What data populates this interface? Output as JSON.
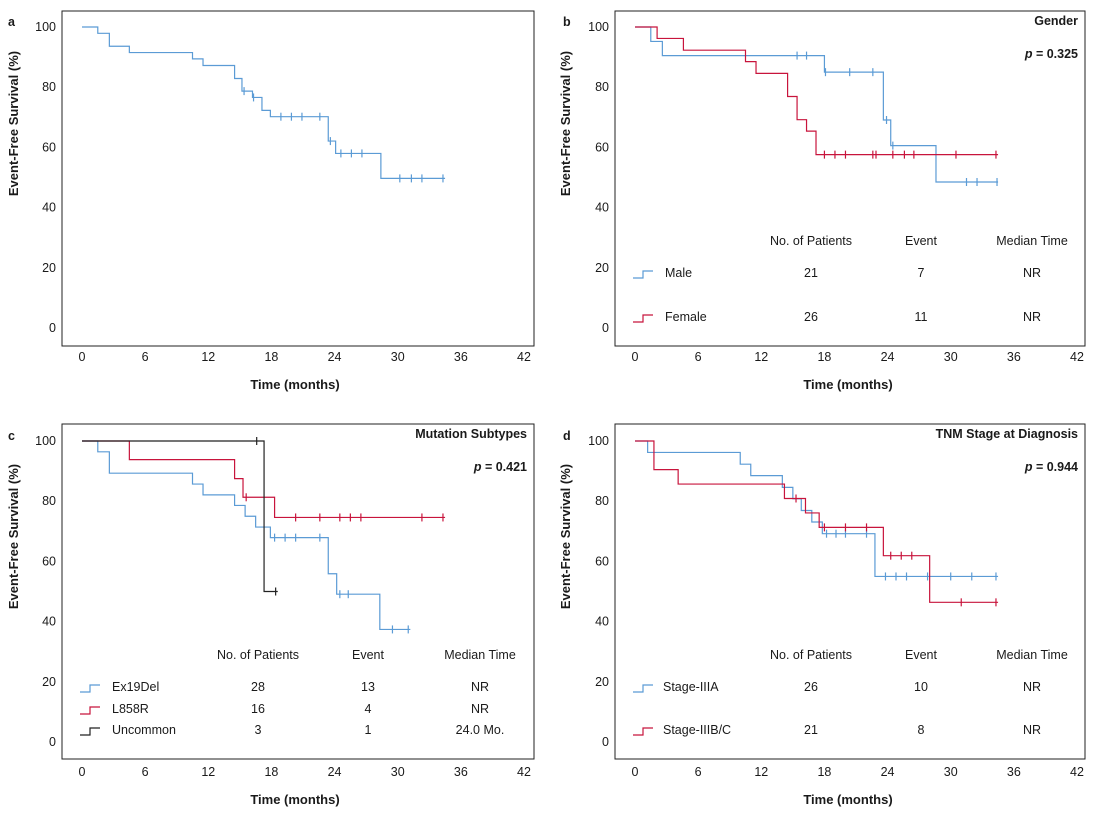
{
  "chart_data": [
    {
      "type": "line",
      "panel": "a",
      "title": "",
      "xlabel": "Time (months)",
      "ylabel": "Event-Free Survival (%)",
      "xticks": [
        0,
        6,
        12,
        18,
        24,
        30,
        36,
        42
      ],
      "yticks": [
        0,
        20,
        40,
        60,
        80,
        100
      ],
      "xlim": [
        0,
        42
      ],
      "ylim": [
        0,
        100
      ],
      "series": [
        {
          "color": "#5b9bd5",
          "steps": [
            [
              0,
              100
            ],
            [
              1.5,
              97.9
            ],
            [
              2.6,
              93.6
            ],
            [
              4.5,
              91.5
            ],
            [
              10.5,
              89.4
            ],
            [
              11.5,
              87.2
            ],
            [
              14.5,
              82.9
            ],
            [
              15.2,
              78.7
            ],
            [
              16.2,
              76.6
            ],
            [
              17.1,
              72.3
            ],
            [
              17.9,
              70.2
            ],
            [
              23.4,
              62.1
            ],
            [
              24.1,
              58.0
            ],
            [
              28.4,
              49.7
            ],
            [
              34.5,
              49.7
            ]
          ],
          "censored": [
            [
              15.4,
              78.7
            ],
            [
              16.3,
              76.6
            ],
            [
              18.9,
              70.2
            ],
            [
              19.9,
              70.2
            ],
            [
              20.9,
              70.2
            ],
            [
              22.6,
              70.2
            ],
            [
              23.6,
              62.1
            ],
            [
              24.6,
              58.0
            ],
            [
              25.6,
              58.0
            ],
            [
              26.6,
              58.0
            ],
            [
              30.2,
              49.7
            ],
            [
              31.3,
              49.7
            ],
            [
              32.3,
              49.7
            ],
            [
              34.3,
              49.7
            ]
          ]
        }
      ]
    },
    {
      "type": "line",
      "panel": "b",
      "title": "Gender",
      "p_value": "p = 0.325",
      "xlabel": "Time (months)",
      "ylabel": "Event-Free Survival (%)",
      "xticks": [
        0,
        6,
        12,
        18,
        24,
        30,
        36,
        42
      ],
      "yticks": [
        0,
        20,
        40,
        60,
        80,
        100
      ],
      "xlim": [
        0,
        42
      ],
      "ylim": [
        0,
        100
      ],
      "table_headers": [
        "No. of Patients",
        "Event",
        "Median Time"
      ],
      "series": [
        {
          "name": "Male",
          "patients": "21",
          "events": "7",
          "median": "NR",
          "color": "#5b9bd5",
          "steps": [
            [
              0,
              100
            ],
            [
              1.5,
              95.2
            ],
            [
              2.6,
              90.5
            ],
            [
              18.0,
              85.0
            ],
            [
              23.6,
              69.1
            ],
            [
              24.3,
              60.6
            ],
            [
              28.6,
              48.5
            ],
            [
              34.5,
              48.5
            ]
          ],
          "censored": [
            [
              15.4,
              90.5
            ],
            [
              16.3,
              90.5
            ],
            [
              18.1,
              85.0
            ],
            [
              20.4,
              85.0
            ],
            [
              22.6,
              85.0
            ],
            [
              23.9,
              69.1
            ],
            [
              24.5,
              60.6
            ],
            [
              31.5,
              48.5
            ],
            [
              32.5,
              48.5
            ],
            [
              34.4,
              48.5
            ]
          ]
        },
        {
          "name": "Female",
          "patients": "26",
          "events": "11",
          "median": "NR",
          "color": "#c8143c",
          "steps": [
            [
              0,
              100
            ],
            [
              2.1,
              96.2
            ],
            [
              4.6,
              92.3
            ],
            [
              10.5,
              88.5
            ],
            [
              11.5,
              84.6
            ],
            [
              14.5,
              76.9
            ],
            [
              15.4,
              69.2
            ],
            [
              16.3,
              65.4
            ],
            [
              17.2,
              57.6
            ],
            [
              34.5,
              57.6
            ]
          ],
          "censored": [
            [
              18.0,
              57.6
            ],
            [
              19.0,
              57.6
            ],
            [
              20.0,
              57.6
            ],
            [
              22.6,
              57.6
            ],
            [
              22.9,
              57.6
            ],
            [
              24.5,
              57.6
            ],
            [
              25.6,
              57.6
            ],
            [
              26.5,
              57.6
            ],
            [
              30.5,
              57.6
            ],
            [
              34.3,
              57.6
            ]
          ]
        }
      ]
    },
    {
      "type": "line",
      "panel": "c",
      "title": "Mutation Subtypes",
      "p_value": "p = 0.421",
      "xlabel": "Time (months)",
      "ylabel": "Event-Free Survival (%)",
      "xticks": [
        0,
        6,
        12,
        18,
        24,
        30,
        36,
        42
      ],
      "yticks": [
        0,
        20,
        40,
        60,
        80,
        100
      ],
      "xlim": [
        0,
        42
      ],
      "ylim": [
        0,
        100
      ],
      "table_headers": [
        "No. of Patients",
        "Event",
        "Median Time"
      ],
      "series": [
        {
          "name": "Ex19Del",
          "patients": "28",
          "events": "13",
          "median": "NR",
          "color": "#5b9bd5",
          "steps": [
            [
              0,
              100
            ],
            [
              1.5,
              96.4
            ],
            [
              2.6,
              89.3
            ],
            [
              10.5,
              85.7
            ],
            [
              11.5,
              82.1
            ],
            [
              14.5,
              78.6
            ],
            [
              15.5,
              75.0
            ],
            [
              16.5,
              71.4
            ],
            [
              17.9,
              67.9
            ],
            [
              23.4,
              55.9
            ],
            [
              24.2,
              49.1
            ],
            [
              28.3,
              37.4
            ],
            [
              31.2,
              37.4
            ]
          ],
          "censored": [
            [
              18.3,
              67.9
            ],
            [
              19.3,
              67.9
            ],
            [
              20.3,
              67.9
            ],
            [
              22.6,
              67.9
            ],
            [
              24.5,
              49.1
            ],
            [
              25.3,
              49.1
            ],
            [
              29.5,
              37.4
            ],
            [
              31.0,
              37.4
            ]
          ]
        },
        {
          "name": "L858R",
          "patients": "16",
          "events": "4",
          "median": "NR",
          "color": "#c8143c",
          "steps": [
            [
              0,
              100
            ],
            [
              4.5,
              93.8
            ],
            [
              14.5,
              87.5
            ],
            [
              15.3,
              81.3
            ],
            [
              18.3,
              74.6
            ],
            [
              34.5,
              74.6
            ]
          ],
          "censored": [
            [
              15.6,
              81.3
            ],
            [
              20.3,
              74.6
            ],
            [
              22.6,
              74.6
            ],
            [
              24.5,
              74.6
            ],
            [
              25.5,
              74.6
            ],
            [
              26.5,
              74.6
            ],
            [
              32.3,
              74.6
            ],
            [
              34.3,
              74.6
            ]
          ]
        },
        {
          "name": "Uncommon",
          "patients": "3",
          "events": "1",
          "median": "24.0 Mo.",
          "color": "#222222",
          "steps": [
            [
              0,
              100
            ],
            [
              17.3,
              100
            ],
            [
              17.3,
              50.0
            ],
            [
              18.6,
              50.0
            ]
          ],
          "censored": [
            [
              16.6,
              100
            ],
            [
              18.4,
              50.0
            ]
          ]
        }
      ]
    },
    {
      "type": "line",
      "panel": "d",
      "title": "TNM Stage at Diagnosis",
      "p_value": "p = 0.944",
      "xlabel": "Time (months)",
      "ylabel": "Event-Free Survival (%)",
      "xticks": [
        0,
        6,
        12,
        18,
        24,
        30,
        36,
        42
      ],
      "yticks": [
        0,
        20,
        40,
        60,
        80,
        100
      ],
      "xlim": [
        0,
        42
      ],
      "ylim": [
        0,
        100
      ],
      "table_headers": [
        "No. of Patients",
        "Event",
        "Median Time"
      ],
      "series": [
        {
          "name": "Stage-IIIA",
          "patients": "26",
          "events": "10",
          "median": "NR",
          "color": "#5b9bd5",
          "steps": [
            [
              0,
              100
            ],
            [
              1.2,
              96.2
            ],
            [
              10.0,
              92.3
            ],
            [
              11.0,
              88.5
            ],
            [
              14.0,
              84.6
            ],
            [
              15.0,
              80.8
            ],
            [
              15.8,
              76.9
            ],
            [
              16.8,
              73.1
            ],
            [
              17.8,
              69.2
            ],
            [
              22.8,
              55.0
            ],
            [
              34.5,
              55.0
            ]
          ],
          "censored": [
            [
              18.2,
              69.2
            ],
            [
              19.1,
              69.2
            ],
            [
              20.0,
              69.2
            ],
            [
              22.0,
              69.2
            ],
            [
              23.8,
              55.0
            ],
            [
              24.8,
              55.0
            ],
            [
              25.8,
              55.0
            ],
            [
              27.8,
              55.0
            ],
            [
              30.0,
              55.0
            ],
            [
              32.0,
              55.0
            ],
            [
              34.3,
              55.0
            ]
          ]
        },
        {
          "name": "Stage-IIIB/C",
          "patients": "21",
          "events": "8",
          "median": "NR",
          "color": "#c8143c",
          "steps": [
            [
              0,
              100
            ],
            [
              1.8,
              90.5
            ],
            [
              4.1,
              85.7
            ],
            [
              14.2,
              80.9
            ],
            [
              16.2,
              76.1
            ],
            [
              17.5,
              71.3
            ],
            [
              23.6,
              61.9
            ],
            [
              28.0,
              46.4
            ],
            [
              34.5,
              46.4
            ]
          ],
          "censored": [
            [
              15.3,
              80.9
            ],
            [
              18.0,
              71.3
            ],
            [
              20.0,
              71.3
            ],
            [
              22.0,
              71.3
            ],
            [
              24.3,
              61.9
            ],
            [
              25.3,
              61.9
            ],
            [
              26.3,
              61.9
            ],
            [
              31.0,
              46.4
            ],
            [
              34.3,
              46.4
            ]
          ]
        }
      ]
    }
  ]
}
